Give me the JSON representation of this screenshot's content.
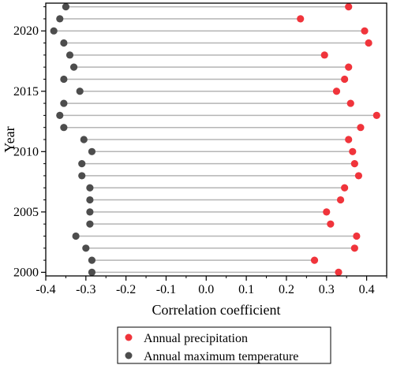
{
  "chart_data": {
    "type": "dumbbell",
    "xlabel": "Correlation coefficient",
    "ylabel": "Year",
    "xlim": [
      -0.4,
      0.45
    ],
    "ylim": [
      1999.7,
      2022.3
    ],
    "xticks": [
      -0.4,
      -0.3,
      -0.2,
      -0.1,
      0.0,
      0.1,
      0.2,
      0.3,
      0.4
    ],
    "xtick_labels": [
      "-0.4",
      "-0.3",
      "-0.2",
      "-0.1",
      "0.0",
      "0.1",
      "0.2",
      "0.3",
      "0.4"
    ],
    "yticks": [
      2000,
      2005,
      2010,
      2015,
      2020
    ],
    "ytick_labels": [
      "2000",
      "2005",
      "2010",
      "2015",
      "2020"
    ],
    "grid": false,
    "legend_position": "bottom-center",
    "x": [
      2000,
      2001,
      2002,
      2003,
      2004,
      2005,
      2006,
      2007,
      2008,
      2009,
      2010,
      2011,
      2012,
      2013,
      2014,
      2015,
      2016,
      2017,
      2018,
      2019,
      2020,
      2021,
      2022
    ],
    "series": [
      {
        "name": "Annual precipitation",
        "color": "#f0343b",
        "values": [
          0.33,
          0.27,
          0.37,
          0.375,
          0.31,
          0.3,
          0.335,
          0.345,
          0.38,
          0.37,
          0.365,
          0.355,
          0.385,
          0.425,
          0.36,
          0.325,
          0.345,
          0.355,
          0.295,
          0.405,
          0.395,
          0.235,
          0.355
        ]
      },
      {
        "name": "Annual maximum temperature",
        "color": "#4d4d4d",
        "values": [
          -0.285,
          -0.285,
          -0.3,
          -0.325,
          -0.29,
          -0.29,
          -0.29,
          -0.29,
          -0.31,
          -0.31,
          -0.285,
          -0.305,
          -0.355,
          -0.365,
          -0.355,
          -0.315,
          -0.355,
          -0.33,
          -0.34,
          -0.355,
          -0.38,
          -0.365,
          -0.35
        ]
      }
    ],
    "connector_color": "#b5b5b5"
  }
}
